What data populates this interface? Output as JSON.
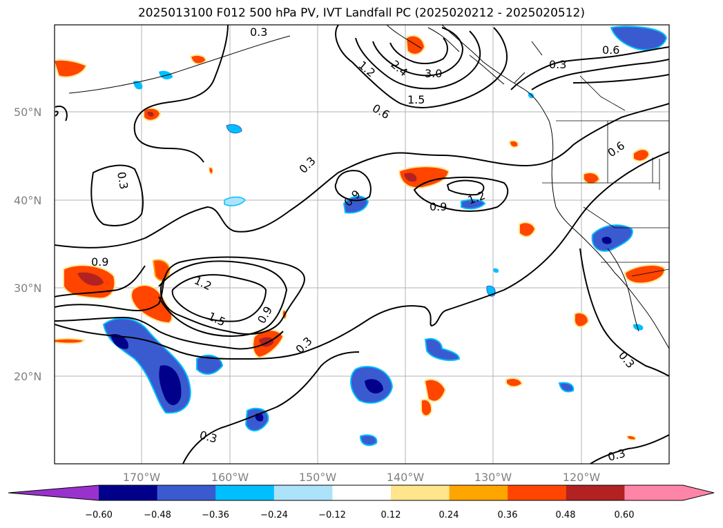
{
  "title": "2025013100 F012 500 hPa PV, IVT Landfall PC (2025020212 - 2025020512)",
  "map": {
    "lat_labels": [
      "50°N",
      "40°N",
      "30°N",
      "20°N"
    ],
    "lon_labels": [
      "170°W",
      "160°W",
      "150°W",
      "140°W",
      "130°W",
      "120°W"
    ],
    "contour_labels": [
      "0.3",
      "0.6",
      "0.9",
      "1.2",
      "1.5",
      "2.4",
      "3.0"
    ]
  },
  "colorbar": {
    "ticks": [
      "−0.60",
      "−0.48",
      "−0.36",
      "−0.24",
      "−0.12",
      "0.12",
      "0.24",
      "0.36",
      "0.48",
      "0.60"
    ],
    "colors": {
      "under": "#9932cc",
      "bins": [
        "#00008b",
        "#3a5bd0",
        "#00bfff",
        "#ade3fa",
        "#ffffff",
        "#ffe68c",
        "#ffa500",
        "#ff4500",
        "#b22222",
        "#ff85a8"
      ],
      "over": "#ff85a8"
    }
  }
}
